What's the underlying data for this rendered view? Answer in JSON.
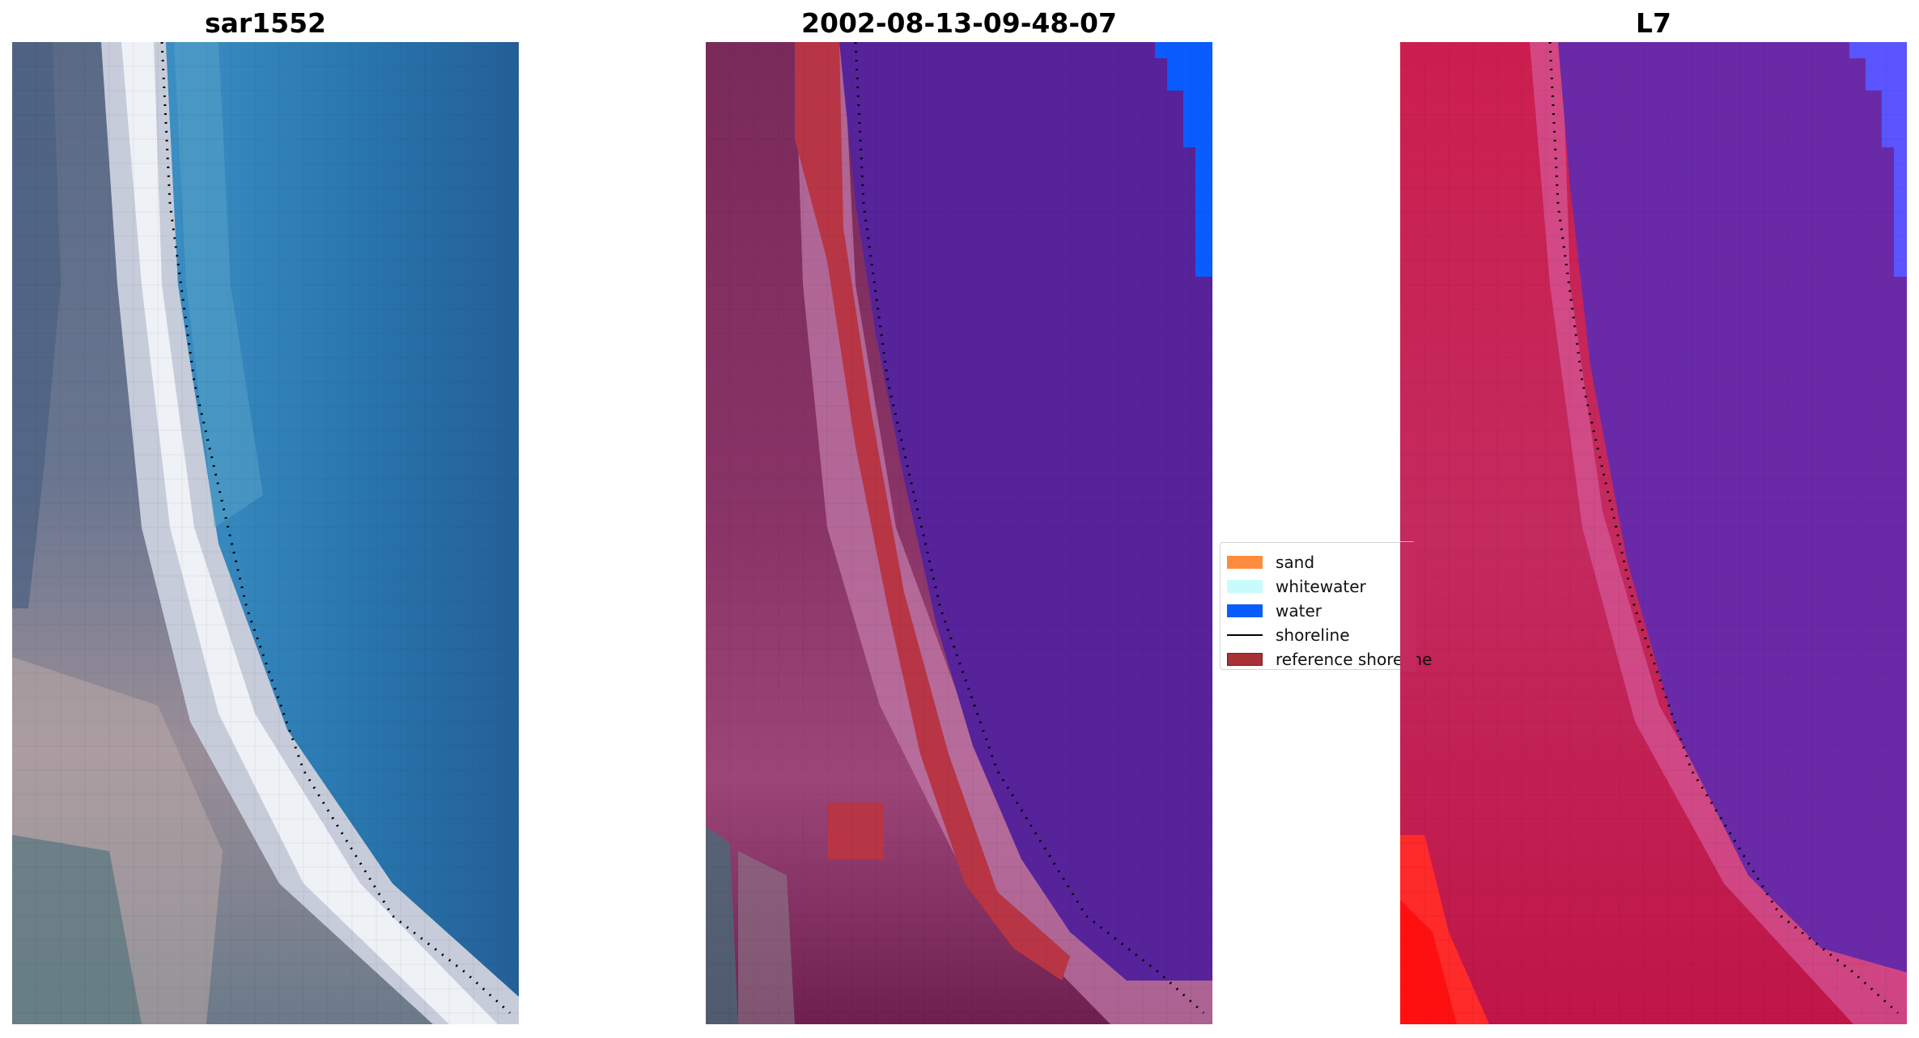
{
  "panels": [
    {
      "title": "sar1552",
      "style": "rgb"
    },
    {
      "title": "2002-08-13-09-48-07",
      "style": "classified"
    },
    {
      "title": "L7",
      "style": "falsecolor"
    }
  ],
  "legend": {
    "items": [
      {
        "label": "sand",
        "kind": "patch",
        "color": "#ff8c3c"
      },
      {
        "label": "whitewater",
        "kind": "patch",
        "color": "#c8fcfc"
      },
      {
        "label": "water",
        "kind": "patch",
        "color": "#0a5cff"
      },
      {
        "label": "shoreline",
        "kind": "line",
        "color": "#000000"
      },
      {
        "label": "reference shoreline",
        "kind": "patch",
        "color": "#a83236",
        "border": "#6e1d1f"
      }
    ]
  },
  "colors": {
    "water_rgb": "#2b7fb5",
    "water_class": "#56239a",
    "water_bright": "#0a5cff",
    "whitewater_rgb": "#eef1f5",
    "reference_shoreline": "#b83545",
    "falsecolor_land": "#c2185b",
    "falsecolor_water": "#6a2aa8"
  }
}
